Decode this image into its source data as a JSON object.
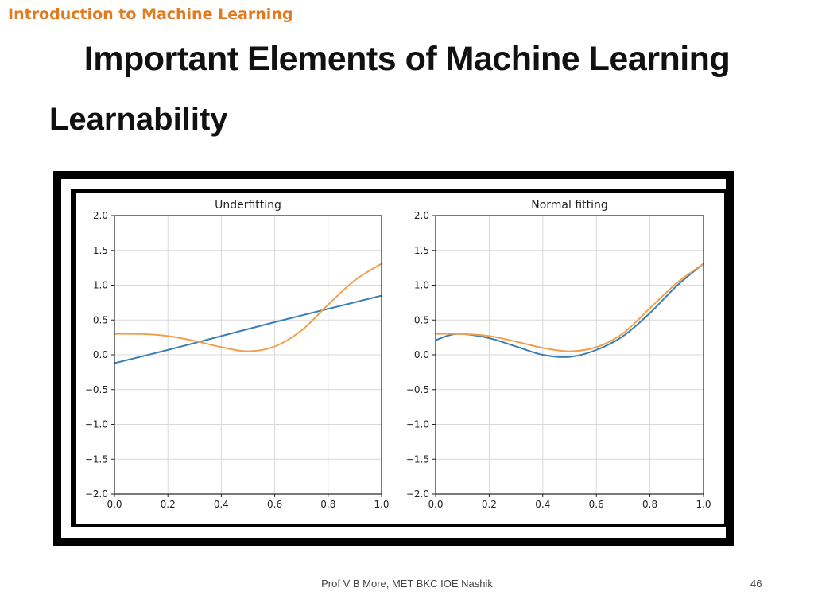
{
  "header": {
    "course_title": "Introduction to Machine Learning",
    "title": "Important Elements of Machine Learning",
    "subtitle": "Learnability"
  },
  "footer": {
    "text": "Prof V B More, MET BKC IOE Nashik",
    "page": "46"
  },
  "colors": {
    "course_title": "#e07b22",
    "series_blue": "#3b7fb6",
    "series_orange": "#f0a04b"
  },
  "chart_data": [
    {
      "type": "line",
      "title": "Underfitting",
      "xlabel": "",
      "ylabel": "",
      "xlim": [
        0.0,
        1.0
      ],
      "ylim": [
        -2.0,
        2.0
      ],
      "grid": true,
      "xticks": [
        "0.0",
        "0.2",
        "0.4",
        "0.6",
        "0.8",
        "1.0"
      ],
      "yticks": [
        "2.0",
        "1.5",
        "1.0",
        "0.5",
        "0.0",
        "−0.5",
        "−1.0",
        "−1.5",
        "−2.0"
      ],
      "series": [
        {
          "color": "#3b7fb6",
          "x": [
            0.0,
            0.2,
            0.4,
            0.6,
            0.8,
            1.0
          ],
          "y": [
            -0.12,
            0.07,
            0.27,
            0.47,
            0.66,
            0.85
          ]
        },
        {
          "color": "#f0a04b",
          "x": [
            0.0,
            0.1,
            0.2,
            0.3,
            0.4,
            0.5,
            0.6,
            0.7,
            0.8,
            0.9,
            1.0
          ],
          "y": [
            0.3,
            0.3,
            0.27,
            0.2,
            0.11,
            0.05,
            0.12,
            0.35,
            0.72,
            1.07,
            1.31
          ]
        }
      ]
    },
    {
      "type": "line",
      "title": "Normal fitting",
      "xlabel": "",
      "ylabel": "",
      "xlim": [
        0.0,
        1.0
      ],
      "ylim": [
        -2.0,
        2.0
      ],
      "grid": true,
      "xticks": [
        "0.0",
        "0.2",
        "0.4",
        "0.6",
        "0.8",
        "1.0"
      ],
      "yticks": [
        "2.0",
        "1.5",
        "1.0",
        "0.5",
        "0.0",
        "−0.5",
        "−1.0",
        "−1.5",
        "−2.0"
      ],
      "series": [
        {
          "color": "#3b7fb6",
          "x": [
            0.0,
            0.05,
            0.1,
            0.2,
            0.3,
            0.4,
            0.5,
            0.6,
            0.7,
            0.8,
            0.9,
            1.0
          ],
          "y": [
            0.21,
            0.28,
            0.3,
            0.24,
            0.12,
            0.0,
            -0.03,
            0.07,
            0.27,
            0.6,
            0.99,
            1.31
          ]
        },
        {
          "color": "#f0a04b",
          "x": [
            0.0,
            0.1,
            0.2,
            0.3,
            0.4,
            0.5,
            0.6,
            0.7,
            0.8,
            0.9,
            1.0
          ],
          "y": [
            0.3,
            0.3,
            0.27,
            0.19,
            0.1,
            0.05,
            0.11,
            0.31,
            0.67,
            1.03,
            1.31
          ]
        }
      ]
    }
  ]
}
